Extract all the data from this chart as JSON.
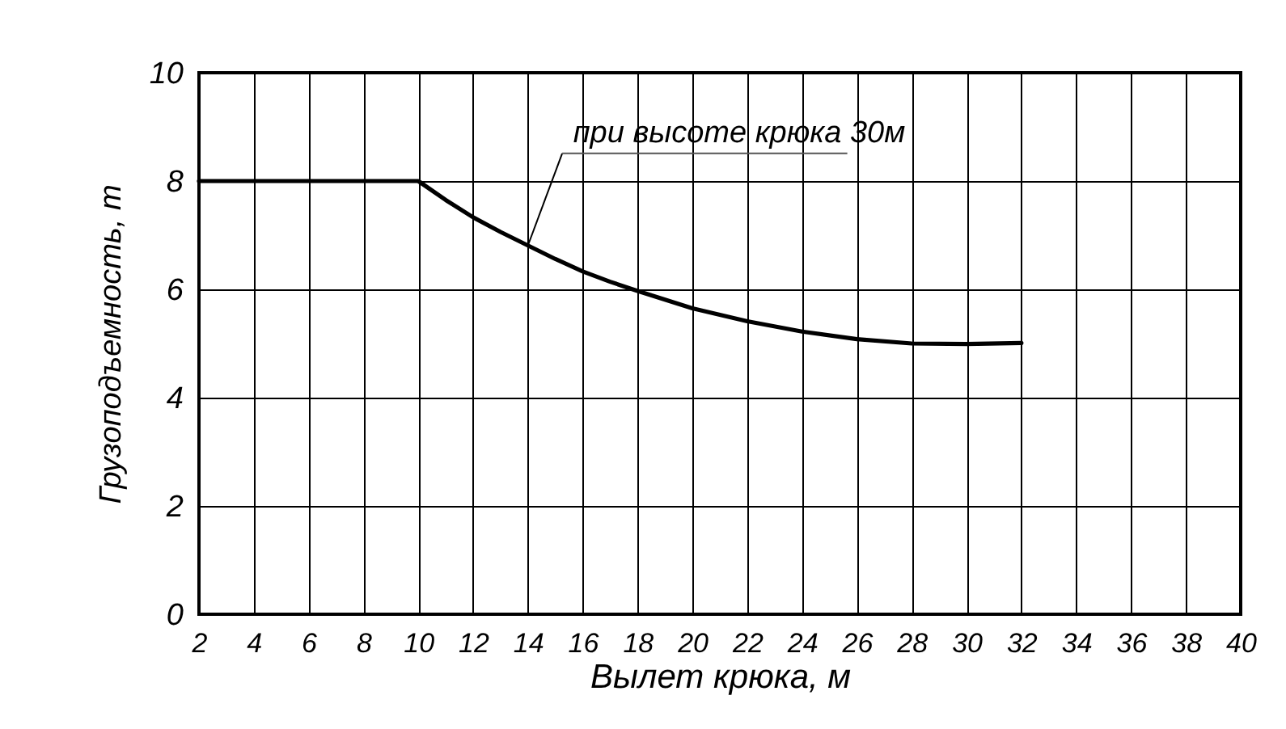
{
  "chart_data": {
    "type": "line",
    "xlabel": "Вылет крюка, м",
    "ylabel": "Грузоподъемность, т",
    "x": [
      2,
      4,
      6,
      8,
      10,
      11,
      12,
      13,
      14,
      15,
      16,
      17,
      18,
      20,
      22,
      24,
      26,
      28,
      30,
      32
    ],
    "series": [
      {
        "color": "#000000",
        "values": [
          8,
          8,
          8,
          8,
          8,
          7.65,
          7.33,
          7.06,
          6.81,
          6.56,
          6.33,
          6.14,
          5.97,
          5.65,
          5.41,
          5.22,
          5.08,
          5.0,
          4.99,
          5.01
        ]
      }
    ],
    "xlim": [
      2,
      40
    ],
    "xticks": [
      2,
      4,
      6,
      8,
      10,
      12,
      14,
      16,
      18,
      20,
      22,
      24,
      26,
      28,
      30,
      32,
      34,
      36,
      38,
      40
    ],
    "ylim": [
      0,
      10
    ],
    "yticks": [
      0,
      2,
      4,
      6,
      8,
      10
    ],
    "grid": true,
    "marker": "none",
    "line_style": "solid",
    "annotations": [
      {
        "text": "при высоте крюка 30м",
        "x": 14,
        "y": 6.81
      }
    ]
  }
}
